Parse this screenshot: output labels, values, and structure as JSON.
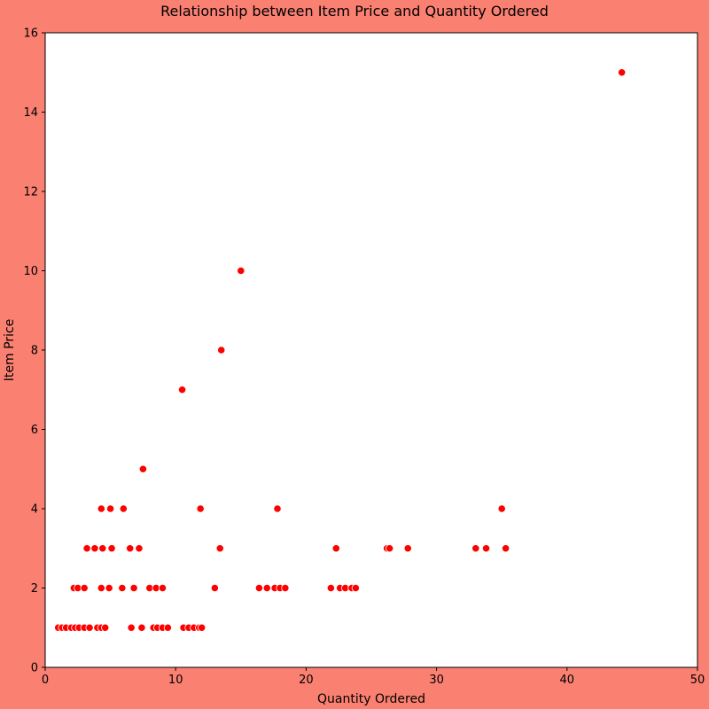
{
  "chart_data": {
    "type": "scatter",
    "title": "Relationship between Item Price and Quantity Ordered",
    "xlabel": "Quantity Ordered",
    "ylabel": "Item Price",
    "xlim": [
      0,
      50
    ],
    "ylim": [
      0,
      16
    ],
    "xticks": [
      "0",
      "10",
      "20",
      "30",
      "40",
      "50"
    ],
    "yticks": [
      "0",
      "2",
      "4",
      "6",
      "8",
      "10",
      "12",
      "14",
      "16"
    ],
    "grid": false,
    "legend": "none",
    "colors": {
      "figure_background": "#FA8072",
      "plot_background": "#FFFFFF",
      "marker_fill": "#FF0000",
      "marker_edge": "#FFFFFF"
    },
    "points": [
      {
        "x": 1.0,
        "y": 1
      },
      {
        "x": 1.3,
        "y": 1
      },
      {
        "x": 1.6,
        "y": 1
      },
      {
        "x": 2.0,
        "y": 1
      },
      {
        "x": 2.3,
        "y": 1
      },
      {
        "x": 2.6,
        "y": 1
      },
      {
        "x": 3.0,
        "y": 1
      },
      {
        "x": 3.4,
        "y": 1
      },
      {
        "x": 4.0,
        "y": 1
      },
      {
        "x": 4.3,
        "y": 1
      },
      {
        "x": 4.6,
        "y": 1
      },
      {
        "x": 6.6,
        "y": 1
      },
      {
        "x": 7.4,
        "y": 1
      },
      {
        "x": 8.3,
        "y": 1
      },
      {
        "x": 8.6,
        "y": 1
      },
      {
        "x": 9.0,
        "y": 1
      },
      {
        "x": 9.4,
        "y": 1
      },
      {
        "x": 10.6,
        "y": 1
      },
      {
        "x": 11.0,
        "y": 1
      },
      {
        "x": 11.4,
        "y": 1
      },
      {
        "x": 11.8,
        "y": 1
      },
      {
        "x": 12.0,
        "y": 1
      },
      {
        "x": 2.2,
        "y": 2
      },
      {
        "x": 2.5,
        "y": 2
      },
      {
        "x": 3.0,
        "y": 2
      },
      {
        "x": 4.3,
        "y": 2
      },
      {
        "x": 4.9,
        "y": 2
      },
      {
        "x": 5.9,
        "y": 2
      },
      {
        "x": 6.8,
        "y": 2
      },
      {
        "x": 8.0,
        "y": 2
      },
      {
        "x": 8.5,
        "y": 2
      },
      {
        "x": 9.0,
        "y": 2
      },
      {
        "x": 13.0,
        "y": 2
      },
      {
        "x": 16.4,
        "y": 2
      },
      {
        "x": 17.0,
        "y": 2
      },
      {
        "x": 17.6,
        "y": 2
      },
      {
        "x": 18.0,
        "y": 2
      },
      {
        "x": 18.4,
        "y": 2
      },
      {
        "x": 21.9,
        "y": 2
      },
      {
        "x": 22.6,
        "y": 2
      },
      {
        "x": 23.0,
        "y": 2
      },
      {
        "x": 23.5,
        "y": 2
      },
      {
        "x": 23.8,
        "y": 2
      },
      {
        "x": 3.2,
        "y": 3
      },
      {
        "x": 3.8,
        "y": 3
      },
      {
        "x": 4.4,
        "y": 3
      },
      {
        "x": 5.1,
        "y": 3
      },
      {
        "x": 6.5,
        "y": 3
      },
      {
        "x": 7.2,
        "y": 3
      },
      {
        "x": 13.4,
        "y": 3
      },
      {
        "x": 22.3,
        "y": 3
      },
      {
        "x": 26.2,
        "y": 3
      },
      {
        "x": 26.4,
        "y": 3
      },
      {
        "x": 27.8,
        "y": 3
      },
      {
        "x": 33.0,
        "y": 3
      },
      {
        "x": 33.8,
        "y": 3
      },
      {
        "x": 35.3,
        "y": 3
      },
      {
        "x": 4.3,
        "y": 4
      },
      {
        "x": 5.0,
        "y": 4
      },
      {
        "x": 6.0,
        "y": 4
      },
      {
        "x": 11.9,
        "y": 4
      },
      {
        "x": 17.8,
        "y": 4
      },
      {
        "x": 35.0,
        "y": 4
      },
      {
        "x": 7.5,
        "y": 5
      },
      {
        "x": 10.5,
        "y": 7
      },
      {
        "x": 13.5,
        "y": 8
      },
      {
        "x": 15.0,
        "y": 10
      },
      {
        "x": 44.2,
        "y": 15
      }
    ]
  }
}
